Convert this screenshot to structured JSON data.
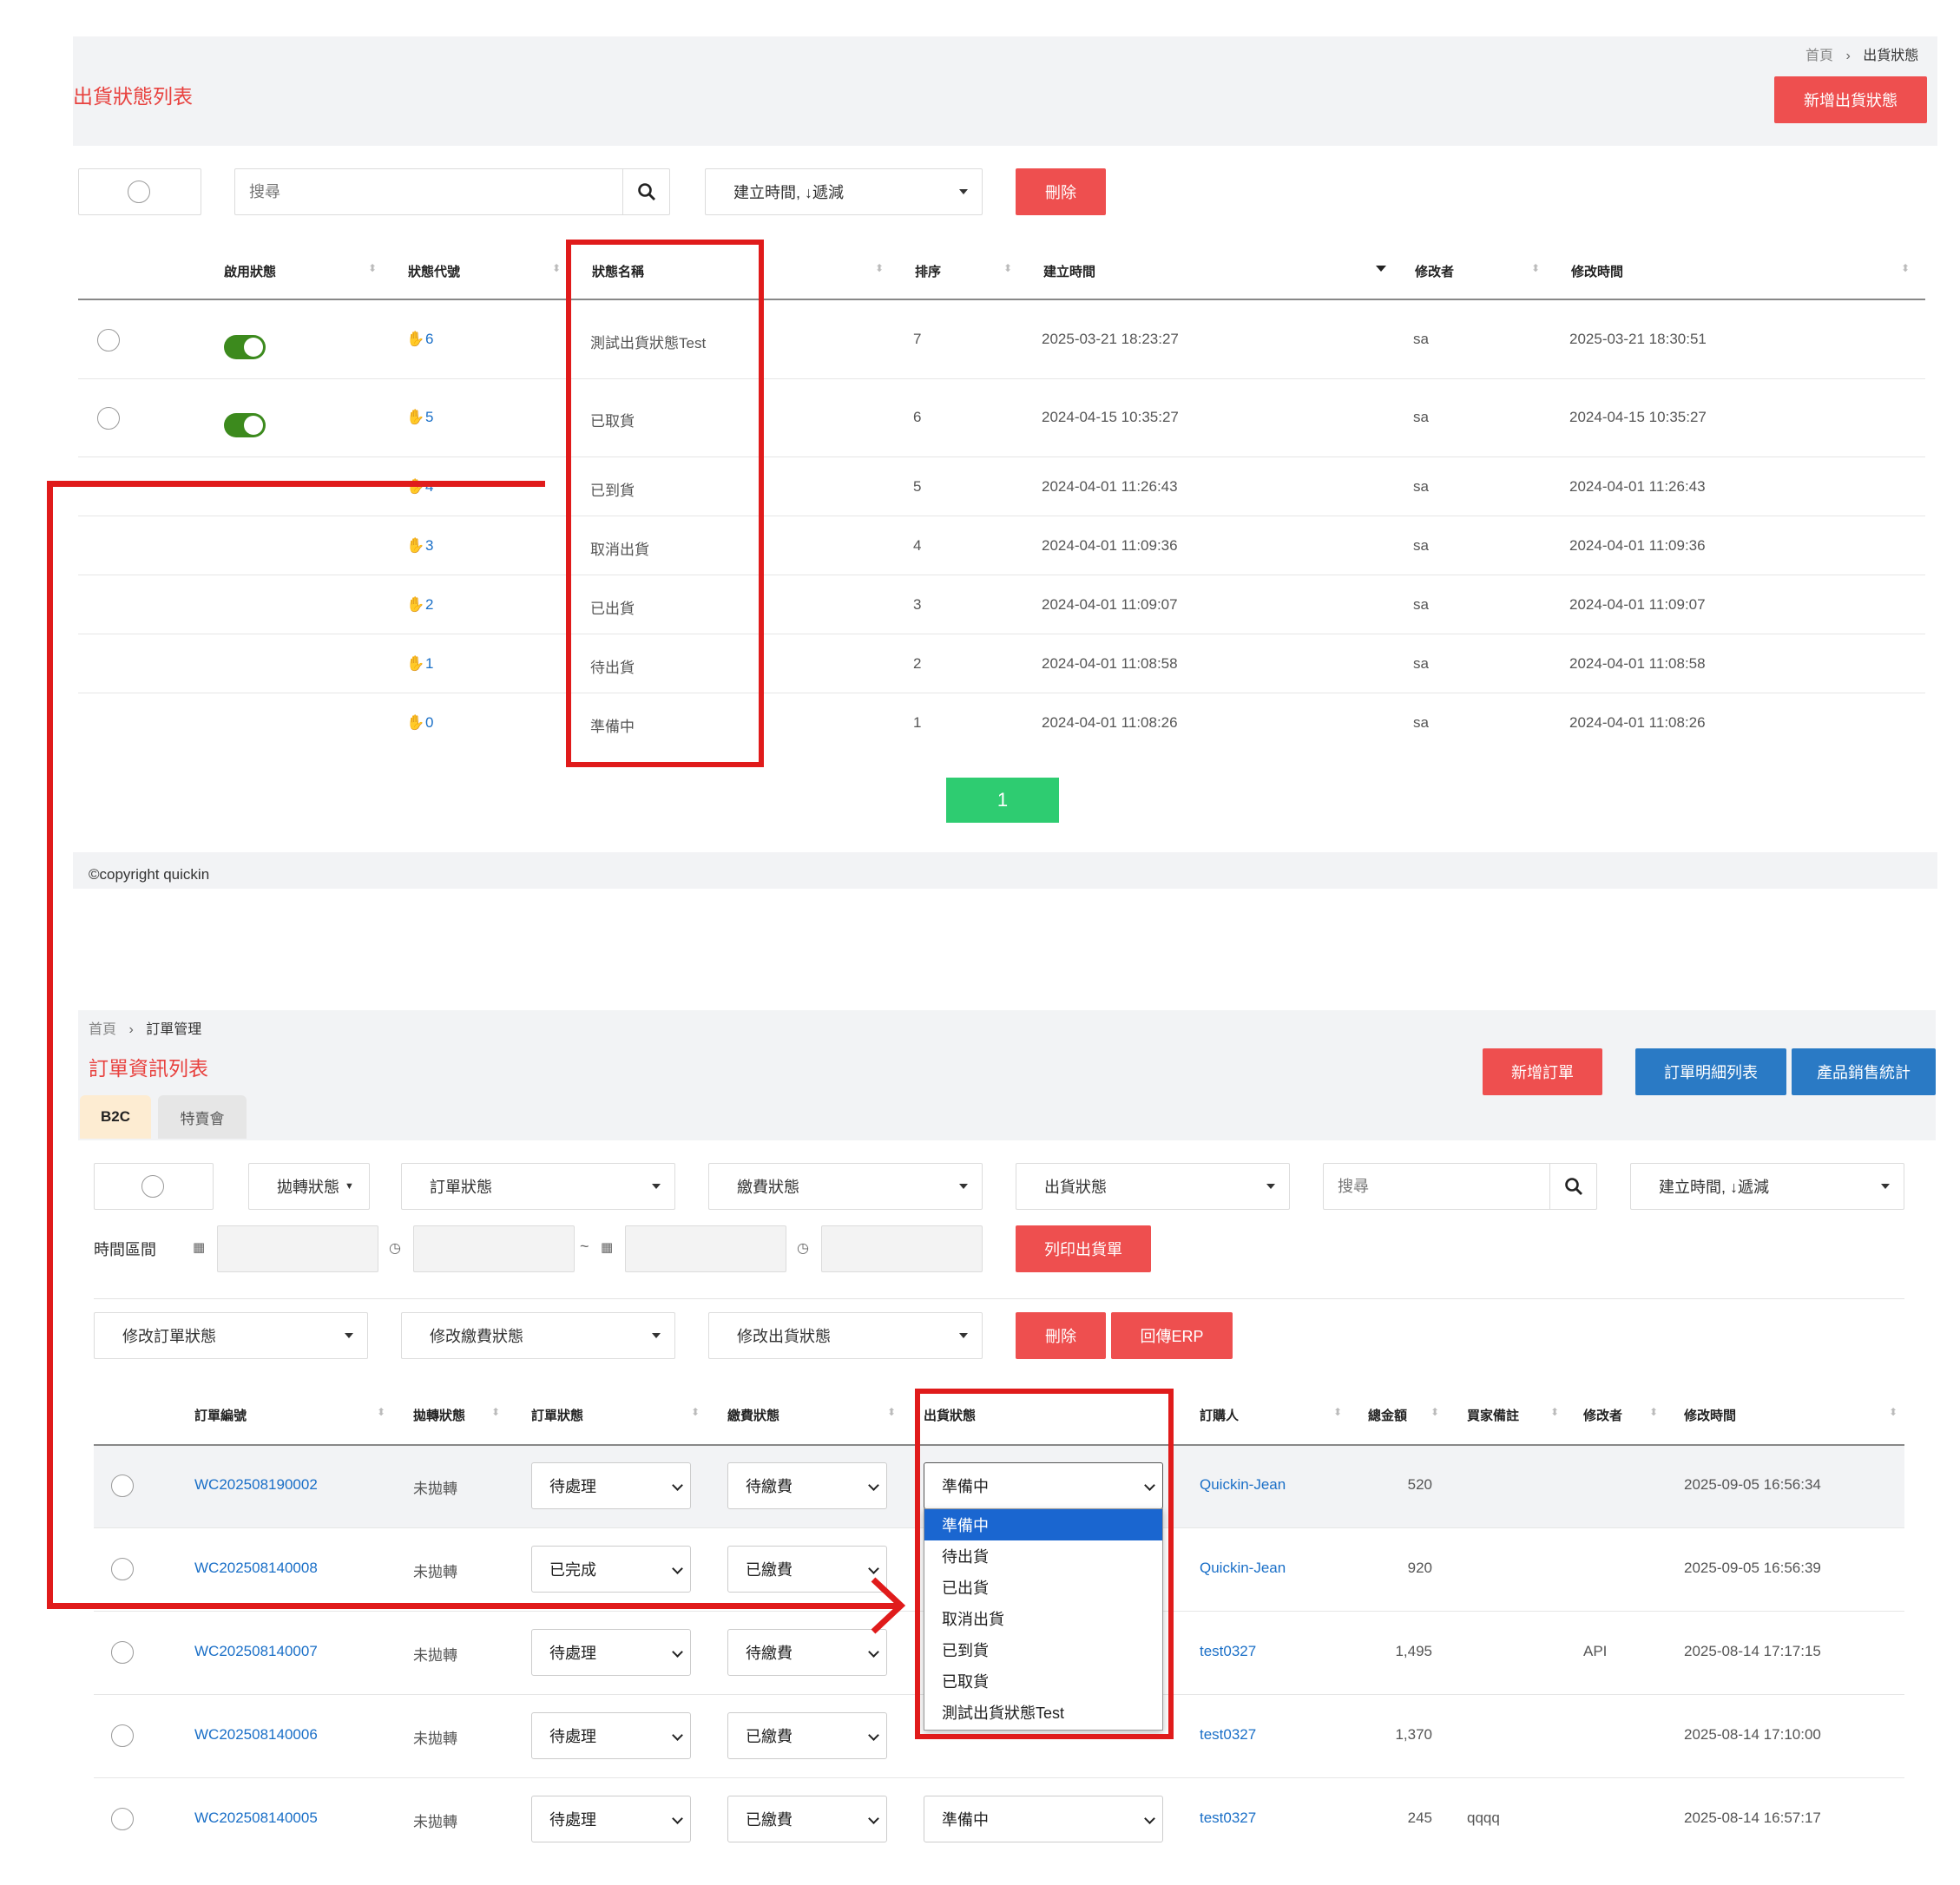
{
  "top": {
    "breadcrumb": {
      "home": "首頁",
      "sep": "›",
      "current": "出貨狀態"
    },
    "title": "出貨狀態列表",
    "add_button": "新增出貨狀態",
    "search_placeholder": "搜尋",
    "sort_select": "建立時間, ↓遞減",
    "delete_button": "刪除",
    "columns": [
      "啟用狀態",
      "狀態代號",
      "狀態名稱",
      "排序",
      "建立時間",
      "修改者",
      "修改時間"
    ],
    "rows": [
      {
        "code": "6",
        "name": "測試出貨狀態Test",
        "order": "7",
        "created": "2025-03-21 18:23:27",
        "modifier": "sa",
        "modified": "2025-03-21 18:30:51",
        "toggle": true
      },
      {
        "code": "5",
        "name": "已取貨",
        "order": "6",
        "created": "2024-04-15 10:35:27",
        "modifier": "sa",
        "modified": "2024-04-15 10:35:27",
        "toggle": true
      },
      {
        "code": "4",
        "name": "已到貨",
        "order": "5",
        "created": "2024-04-01 11:26:43",
        "modifier": "sa",
        "modified": "2024-04-01 11:26:43",
        "toggle": false
      },
      {
        "code": "3",
        "name": "取消出貨",
        "order": "4",
        "created": "2024-04-01 11:09:36",
        "modifier": "sa",
        "modified": "2024-04-01 11:09:36",
        "toggle": false
      },
      {
        "code": "2",
        "name": "已出貨",
        "order": "3",
        "created": "2024-04-01 11:09:07",
        "modifier": "sa",
        "modified": "2024-04-01 11:09:07",
        "toggle": false
      },
      {
        "code": "1",
        "name": "待出貨",
        "order": "2",
        "created": "2024-04-01 11:08:58",
        "modifier": "sa",
        "modified": "2024-04-01 11:08:58",
        "toggle": false
      },
      {
        "code": "0",
        "name": "準備中",
        "order": "1",
        "created": "2024-04-01 11:08:26",
        "modifier": "sa",
        "modified": "2024-04-01 11:08:26",
        "toggle": false
      }
    ],
    "page": "1",
    "copyright": "©copyright quickin"
  },
  "bottom": {
    "breadcrumb": {
      "home": "首頁",
      "sep": "›",
      "current": "訂單管理"
    },
    "title": "訂單資訊列表",
    "buttons": {
      "add": "新增訂單",
      "detail": "訂單明細列表",
      "stats": "產品銷售統計",
      "print": "列印出貨單",
      "delete": "刪除",
      "erp": "回傳ERP"
    },
    "tabs": [
      "B2C",
      "特賣會"
    ],
    "filters": {
      "transfer": "拋轉狀態",
      "order": "訂單狀態",
      "payment": "繳費狀態",
      "shipping": "出貨狀態",
      "search_placeholder": "搜尋",
      "sort": "建立時間, ↓遞減",
      "time_range": "時間區間",
      "tilde": "~"
    },
    "batch": {
      "order": "修改訂單狀態",
      "payment": "修改繳費狀態",
      "shipping": "修改出貨狀態"
    },
    "columns": [
      "訂單編號",
      "拋轉狀態",
      "訂單狀態",
      "繳費狀態",
      "出貨狀態",
      "訂購人",
      "總金額",
      "買家備註",
      "修改者",
      "修改時間"
    ],
    "rows": [
      {
        "id": "WC202508190002",
        "transfer": "未拋轉",
        "order": "待處理",
        "payment": "待繳費",
        "shipping": "準備中",
        "buyer": "Quickin-Jean",
        "total": "520",
        "note": "",
        "modifier": "",
        "modified": "2025-09-05 16:56:34"
      },
      {
        "id": "WC202508140008",
        "transfer": "未拋轉",
        "order": "已完成",
        "payment": "已繳費",
        "shipping": "",
        "buyer": "Quickin-Jean",
        "total": "920",
        "note": "",
        "modifier": "",
        "modified": "2025-09-05 16:56:39"
      },
      {
        "id": "WC202508140007",
        "transfer": "未拋轉",
        "order": "待處理",
        "payment": "待繳費",
        "shipping": "",
        "buyer": "test0327",
        "total": "1,495",
        "note": "",
        "modifier": "API",
        "modified": "2025-08-14 17:17:15"
      },
      {
        "id": "WC202508140006",
        "transfer": "未拋轉",
        "order": "待處理",
        "payment": "已繳費",
        "shipping": "",
        "buyer": "test0327",
        "total": "1,370",
        "note": "",
        "modifier": "",
        "modified": "2025-08-14 17:10:00"
      },
      {
        "id": "WC202508140005",
        "transfer": "未拋轉",
        "order": "待處理",
        "payment": "已繳費",
        "shipping": "準備中",
        "buyer": "test0327",
        "total": "245",
        "note": "qqqq",
        "modifier": "",
        "modified": "2025-08-14 16:57:17"
      }
    ],
    "dropdown_options": [
      "準備中",
      "待出貨",
      "已出貨",
      "取消出貨",
      "已到貨",
      "已取貨",
      "測試出貨狀態Test"
    ]
  },
  "colors": {
    "accent_red": "#e8423f",
    "annotation_red": "#e01b1b",
    "toggle_green": "#3c8a1d",
    "page_green": "#2ecc71",
    "button_blue": "#2a7ac5"
  }
}
